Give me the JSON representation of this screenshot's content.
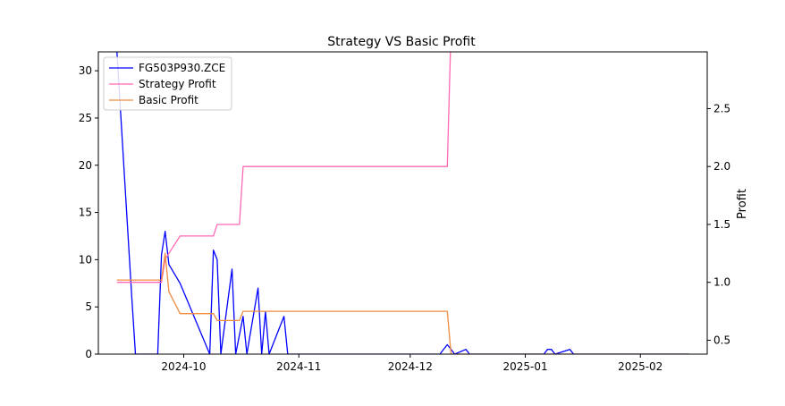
{
  "chart_data": {
    "type": "line",
    "title": "Strategy VS Basic Profit",
    "xlabel": "",
    "ylabel_left": "",
    "ylabel_right": "Profit",
    "xlim": [
      "2024-09-08",
      "2025-02-19"
    ],
    "ylim_left": [
      0,
      32
    ],
    "ylim_right": [
      0.38,
      2.99
    ],
    "x_ticks": [
      {
        "date": "2024-10-01",
        "label": "2024-10"
      },
      {
        "date": "2024-11-01",
        "label": "2024-11"
      },
      {
        "date": "2024-12-01",
        "label": "2024-12"
      },
      {
        "date": "2025-01-01",
        "label": "2025-01"
      },
      {
        "date": "2025-02-01",
        "label": "2025-02"
      }
    ],
    "y_ticks_left": [
      0,
      5,
      10,
      15,
      20,
      25,
      30
    ],
    "y_ticks_right": [
      0.5,
      1.0,
      1.5,
      2.0,
      2.5
    ],
    "y_tick_labels_right": [
      "0.5",
      "1.0",
      "1.5",
      "2.0",
      "2.5"
    ],
    "legend_position": "top-left",
    "grid": false,
    "series": [
      {
        "name": "FG503P930.ZCE",
        "axis": "left",
        "color": "#0000ff",
        "points": [
          [
            "2024-09-13",
            32.0
          ],
          [
            "2024-09-17",
            6.0
          ],
          [
            "2024-09-18",
            0.0
          ],
          [
            "2024-09-24",
            0.0
          ],
          [
            "2024-09-25",
            10.5
          ],
          [
            "2024-09-26",
            13.0
          ],
          [
            "2024-09-27",
            9.5
          ],
          [
            "2024-09-30",
            7.5
          ],
          [
            "2024-10-08",
            0.0
          ],
          [
            "2024-10-09",
            11.0
          ],
          [
            "2024-10-10",
            10.0
          ],
          [
            "2024-10-11",
            0.0
          ],
          [
            "2024-10-14",
            9.0
          ],
          [
            "2024-10-15",
            0.0
          ],
          [
            "2024-10-17",
            4.0
          ],
          [
            "2024-10-18",
            0.0
          ],
          [
            "2024-10-21",
            7.0
          ],
          [
            "2024-10-22",
            0.0
          ],
          [
            "2024-10-23",
            4.5
          ],
          [
            "2024-10-24",
            0.0
          ],
          [
            "2024-10-28",
            4.0
          ],
          [
            "2024-10-29",
            0.0
          ],
          [
            "2024-12-09",
            0.0
          ],
          [
            "2024-12-11",
            1.0
          ],
          [
            "2024-12-13",
            0.0
          ],
          [
            "2024-12-16",
            0.5
          ],
          [
            "2024-12-17",
            0.0
          ],
          [
            "2025-01-06",
            0.0
          ],
          [
            "2025-01-07",
            0.5
          ],
          [
            "2025-01-08",
            0.5
          ],
          [
            "2025-01-09",
            0.0
          ],
          [
            "2025-01-13",
            0.5
          ],
          [
            "2025-01-14",
            0.0
          ],
          [
            "2025-02-14",
            0.0
          ]
        ]
      },
      {
        "name": "Strategy Profit",
        "axis": "right",
        "color": "#ff69b4",
        "points": [
          [
            "2024-09-13",
            1.0
          ],
          [
            "2024-09-25",
            1.0
          ],
          [
            "2024-09-26",
            1.2
          ],
          [
            "2024-09-27",
            1.25
          ],
          [
            "2024-09-30",
            1.4
          ],
          [
            "2024-10-09",
            1.4
          ],
          [
            "2024-10-10",
            1.5
          ],
          [
            "2024-10-16",
            1.5
          ],
          [
            "2024-10-17",
            2.0
          ],
          [
            "2024-12-11",
            2.0
          ],
          [
            "2024-12-12",
            3.2
          ]
        ]
      },
      {
        "name": "Basic Profit",
        "axis": "right",
        "color": "#f08c40",
        "points": [
          [
            "2024-09-13",
            1.02
          ],
          [
            "2024-09-25",
            1.02
          ],
          [
            "2024-09-26",
            1.25
          ],
          [
            "2024-09-27",
            0.92
          ],
          [
            "2024-09-30",
            0.73
          ],
          [
            "2024-10-09",
            0.73
          ],
          [
            "2024-10-10",
            0.67
          ],
          [
            "2024-10-16",
            0.67
          ],
          [
            "2024-10-17",
            0.75
          ],
          [
            "2024-12-11",
            0.75
          ],
          [
            "2024-12-12",
            0.38
          ],
          [
            "2025-02-14",
            0.38
          ]
        ]
      }
    ]
  }
}
